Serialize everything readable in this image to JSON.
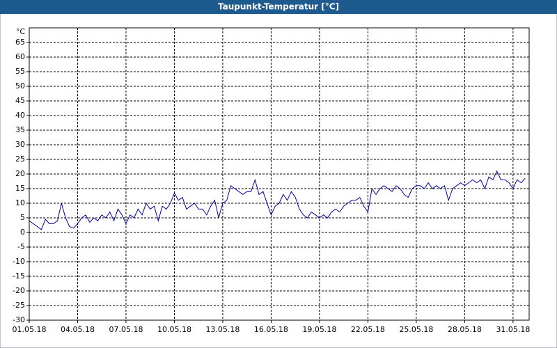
{
  "chart_data": {
    "type": "line",
    "title": "Taupunkt-Temperatur [°C]",
    "y_unit": "°C",
    "x": [
      1,
      1.25,
      1.5,
      1.75,
      2,
      2.25,
      2.5,
      2.75,
      3,
      3.25,
      3.5,
      3.75,
      4,
      4.25,
      4.5,
      4.75,
      5,
      5.25,
      5.5,
      5.75,
      6,
      6.25,
      6.5,
      6.75,
      7,
      7.25,
      7.5,
      7.75,
      8,
      8.25,
      8.5,
      8.75,
      9,
      9.25,
      9.5,
      9.75,
      10,
      10.25,
      10.5,
      10.75,
      11,
      11.25,
      11.5,
      11.75,
      12,
      12.25,
      12.5,
      12.75,
      13,
      13.25,
      13.5,
      13.75,
      14,
      14.25,
      14.5,
      14.75,
      15,
      15.25,
      15.5,
      15.75,
      16,
      16.25,
      16.5,
      16.75,
      17,
      17.25,
      17.5,
      17.75,
      18,
      18.25,
      18.5,
      18.75,
      19,
      19.25,
      19.5,
      19.75,
      20,
      20.25,
      20.5,
      20.75,
      21,
      21.25,
      21.5,
      21.75,
      22,
      22.25,
      22.5,
      22.75,
      23,
      23.25,
      23.5,
      23.75,
      24,
      24.25,
      24.5,
      24.75,
      25,
      25.25,
      25.5,
      25.75,
      26,
      26.25,
      26.5,
      26.75,
      27,
      27.25,
      27.5,
      27.75,
      28,
      28.25,
      28.5,
      28.75,
      29,
      29.25,
      29.5,
      29.75,
      30,
      30.25,
      30.5,
      30.75,
      31,
      31.25,
      31.5,
      31.75
    ],
    "series": [
      {
        "name": "Taupunkt",
        "color": "#0000a0",
        "values": [
          4,
          3,
          2,
          1,
          4.5,
          3,
          3,
          4,
          10,
          5,
          2,
          1.5,
          3,
          5,
          6,
          3.5,
          5,
          4,
          6,
          5,
          7,
          4,
          8,
          6,
          3,
          6,
          5,
          8,
          6,
          10,
          8,
          9,
          4,
          9,
          8,
          10,
          13.5,
          11,
          12,
          8,
          9,
          10,
          8,
          8,
          6,
          9,
          11,
          5,
          10,
          11,
          16,
          15,
          14,
          13,
          14,
          14,
          18,
          13,
          14,
          10,
          6,
          9,
          10,
          13,
          11,
          14,
          12,
          8,
          6,
          5,
          7,
          6,
          5,
          6,
          5,
          7,
          8,
          7,
          9,
          10,
          11,
          11,
          12,
          9,
          7,
          15,
          13,
          15,
          16,
          15,
          14,
          16,
          15,
          13,
          12,
          15,
          16,
          16,
          15,
          17,
          15,
          16,
          15,
          16,
          11,
          15,
          16,
          17,
          16,
          17,
          18,
          17,
          18,
          15,
          19,
          18,
          21,
          18,
          18,
          17,
          15,
          18,
          17,
          18.5
        ]
      }
    ],
    "xlim": [
      1,
      32
    ],
    "xticks": [
      {
        "value": 1,
        "label": "01.05.18"
      },
      {
        "value": 4,
        "label": "04.05.18"
      },
      {
        "value": 7,
        "label": "07.05.18"
      },
      {
        "value": 10,
        "label": "10.05.18"
      },
      {
        "value": 13,
        "label": "13.05.18"
      },
      {
        "value": 16,
        "label": "16.05.18"
      },
      {
        "value": 19,
        "label": "19.05.18"
      },
      {
        "value": 22,
        "label": "22.05.18"
      },
      {
        "value": 25,
        "label": "25.05.18"
      },
      {
        "value": 28,
        "label": "28.05.18"
      },
      {
        "value": 31,
        "label": "31.05.18"
      }
    ],
    "ylim": [
      -30,
      70
    ],
    "yticks": [
      -30,
      -25,
      -20,
      -15,
      -10,
      -5,
      0,
      5,
      10,
      15,
      20,
      25,
      30,
      35,
      40,
      45,
      50,
      55,
      60,
      65
    ],
    "grid": true
  }
}
